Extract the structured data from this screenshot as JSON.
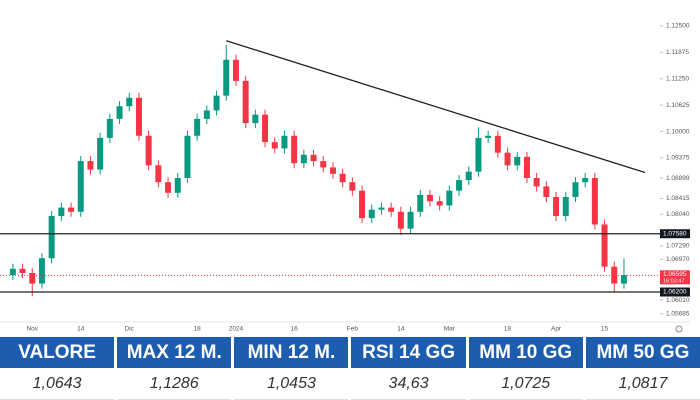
{
  "chart_data": {
    "type": "candlestick",
    "categories": [
      null,
      null,
      "Nov",
      null,
      null,
      null,
      null,
      "14",
      null,
      null,
      null,
      null,
      "Dic",
      null,
      null,
      null,
      null,
      null,
      null,
      "18",
      null,
      null,
      null,
      "2024",
      null,
      null,
      null,
      null,
      null,
      "16",
      null,
      null,
      null,
      null,
      null,
      "Feb",
      null,
      null,
      null,
      null,
      "14",
      null,
      null,
      null,
      null,
      "Mar",
      null,
      null,
      null,
      null,
      null,
      "18",
      null,
      null,
      null,
      null,
      "Apr",
      null,
      null,
      null,
      null,
      "15",
      null,
      null
    ],
    "open": [
      1.066,
      1.0675,
      1.0665,
      1.064,
      1.07,
      1.08,
      1.082,
      1.081,
      1.093,
      1.091,
      1.0985,
      1.103,
      1.106,
      1.108,
      1.099,
      1.092,
      1.088,
      1.0855,
      1.089,
      1.099,
      1.103,
      1.105,
      1.1085,
      1.117,
      1.112,
      1.102,
      1.104,
      1.0975,
      1.096,
      1.099,
      1.0925,
      1.0945,
      1.093,
      1.0915,
      1.09,
      1.088,
      1.086,
      1.0795,
      1.0815,
      1.082,
      1.081,
      1.077,
      1.081,
      1.085,
      1.0835,
      1.0825,
      1.086,
      1.0885,
      1.0905,
      1.0985,
      1.099,
      1.095,
      1.092,
      1.094,
      1.089,
      1.087,
      1.0845,
      1.08,
      1.0845,
      1.088,
      1.089,
      1.078,
      1.068,
      1.064
    ],
    "high": [
      1.0687,
      1.0687,
      1.0677,
      1.0712,
      1.0812,
      1.0832,
      1.0832,
      1.0942,
      1.0942,
      1.0997,
      1.1042,
      1.1072,
      1.1092,
      1.1092,
      1.1002,
      1.0932,
      1.0892,
      1.0902,
      1.1002,
      1.1042,
      1.1062,
      1.1097,
      1.1205,
      1.1182,
      1.1132,
      1.1052,
      1.1052,
      1.0987,
      1.1002,
      1.1002,
      1.0957,
      1.0957,
      1.0942,
      1.0927,
      1.0912,
      1.0892,
      1.0872,
      1.0827,
      1.0832,
      1.0832,
      1.0822,
      1.0822,
      1.0862,
      1.0862,
      1.0847,
      1.0872,
      1.0897,
      1.0917,
      1.101,
      1.1002,
      1.1002,
      1.0962,
      1.0952,
      1.0952,
      1.0902,
      1.0882,
      1.0857,
      1.0857,
      1.0892,
      1.0902,
      1.0902,
      1.0792,
      1.0692,
      1.07
    ],
    "low": [
      1.0648,
      1.0653,
      1.061,
      1.0628,
      1.0688,
      1.0788,
      1.0798,
      1.0798,
      1.0898,
      1.0898,
      1.0973,
      1.1018,
      1.1048,
      1.0978,
      1.0908,
      1.0868,
      1.0843,
      1.0843,
      1.0878,
      1.0978,
      1.1018,
      1.1038,
      1.1073,
      1.1108,
      1.1008,
      1.1008,
      1.0963,
      1.0948,
      1.0948,
      1.0913,
      1.0913,
      1.0918,
      1.0903,
      1.0888,
      1.0868,
      1.0848,
      1.0783,
      1.0783,
      1.0803,
      1.0798,
      1.0755,
      1.0758,
      1.0798,
      1.0823,
      1.0813,
      1.0813,
      1.0848,
      1.0873,
      1.0893,
      1.0973,
      1.0938,
      1.0908,
      1.0908,
      1.0878,
      1.0858,
      1.0833,
      1.0788,
      1.0788,
      1.0833,
      1.0868,
      1.0768,
      1.0668,
      1.062,
      1.0628
    ],
    "close": [
      1.0675,
      1.0665,
      1.064,
      1.07,
      1.08,
      1.082,
      1.081,
      1.093,
      1.091,
      1.0985,
      1.103,
      1.106,
      1.108,
      1.099,
      1.092,
      1.088,
      1.0855,
      1.089,
      1.099,
      1.103,
      1.105,
      1.1085,
      1.117,
      1.112,
      1.102,
      1.104,
      1.0975,
      1.096,
      1.099,
      1.0925,
      1.0945,
      1.093,
      1.0915,
      1.09,
      1.088,
      1.086,
      1.0795,
      1.0815,
      1.082,
      1.081,
      1.077,
      1.081,
      1.085,
      1.0835,
      1.0825,
      1.086,
      1.0885,
      1.0905,
      1.0985,
      1.099,
      1.095,
      1.092,
      1.094,
      1.089,
      1.087,
      1.0845,
      1.08,
      1.0845,
      1.088,
      1.089,
      1.078,
      1.068,
      1.064,
      1.066
    ],
    "up_color": "#089981",
    "down_color": "#f23645",
    "ylim": [
      1.0549,
      1.1276
    ],
    "yticks": [
      {
        "value": 1.125,
        "label": "1.12500"
      },
      {
        "value": 1.11875,
        "label": "1.11875"
      },
      {
        "value": 1.1125,
        "label": "1.11250"
      },
      {
        "value": 1.10625,
        "label": "1.10625"
      },
      {
        "value": 1.1,
        "label": "1.10000"
      },
      {
        "value": 1.09375,
        "label": "1.09375"
      },
      {
        "value": 1.08899,
        "label": "1.08899"
      },
      {
        "value": 1.08415,
        "label": "1.08415"
      },
      {
        "value": 1.0804,
        "label": "1.08040"
      },
      {
        "value": 1.0729,
        "label": "1.07290"
      },
      {
        "value": 1.0697,
        "label": "1.06970"
      },
      {
        "value": 1.0601,
        "label": "1.06010"
      },
      {
        "value": 1.05685,
        "label": "1.05685"
      }
    ],
    "levels": [
      {
        "value": 1.0758,
        "label": "1.07580"
      },
      {
        "value": 1.062,
        "label": "1.06200"
      }
    ],
    "trendline": {
      "from": 1.1215,
      "to": 1.0903
    },
    "current_price": {
      "value": 1.06595,
      "label": "1.06595"
    },
    "countdown": "16:03:47"
  },
  "table": {
    "headers": [
      "VALORE",
      "MAX 12 M.",
      "MIN 12 M.",
      "RSI 14 GG",
      "MM 10 GG",
      "MM 50 GG"
    ],
    "values": [
      "1,0643",
      "1,1286",
      "1,0453",
      "34,63",
      "1,0725",
      "1,0817"
    ]
  }
}
